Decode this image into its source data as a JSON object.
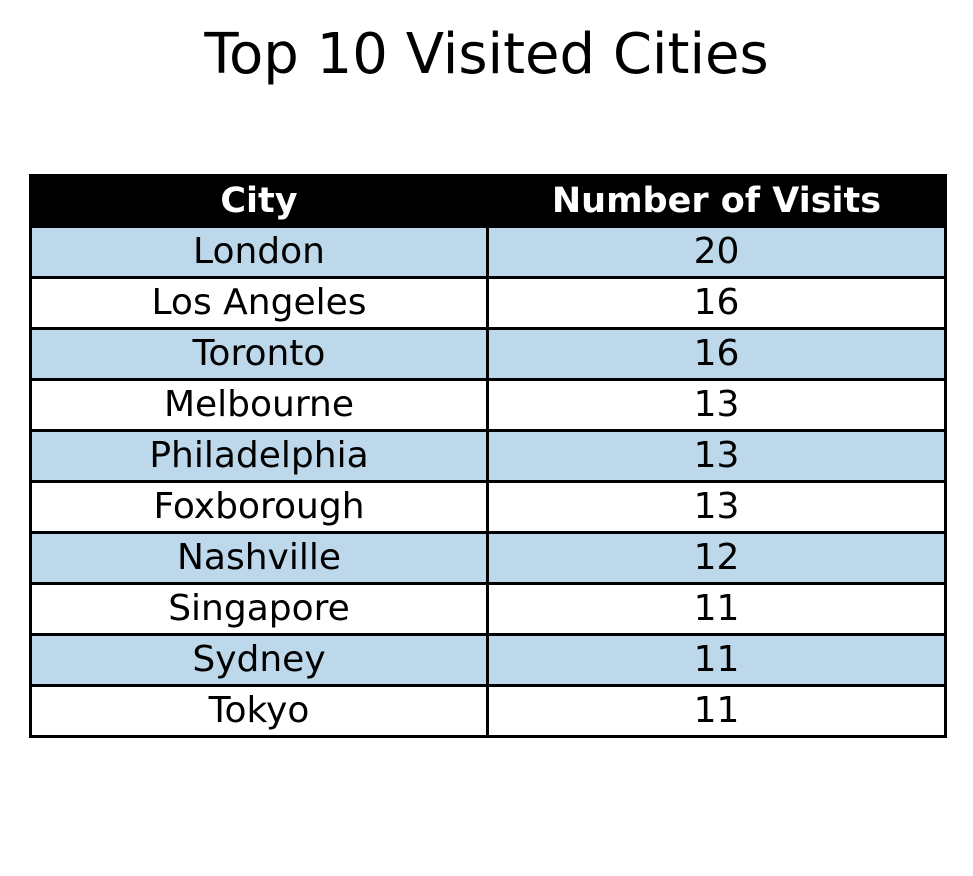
{
  "chart_data": {
    "type": "table",
    "title": "Top 10 Visited Cities",
    "columns": [
      "City",
      "Number of Visits"
    ],
    "rows": [
      [
        "London",
        "20"
      ],
      [
        "Los Angeles",
        "16"
      ],
      [
        "Toronto",
        "16"
      ],
      [
        "Melbourne",
        "13"
      ],
      [
        "Philadelphia",
        "13"
      ],
      [
        "Foxborough",
        "13"
      ],
      [
        "Nashville",
        "12"
      ],
      [
        "Singapore",
        "11"
      ],
      [
        "Sydney",
        "11"
      ],
      [
        "Tokyo",
        "11"
      ]
    ]
  },
  "colors": {
    "header_background": "#000000",
    "header_text": "#ffffff",
    "row_alternate": "#bcd8ea",
    "row_default": "#ffffff",
    "border": "#000000"
  }
}
